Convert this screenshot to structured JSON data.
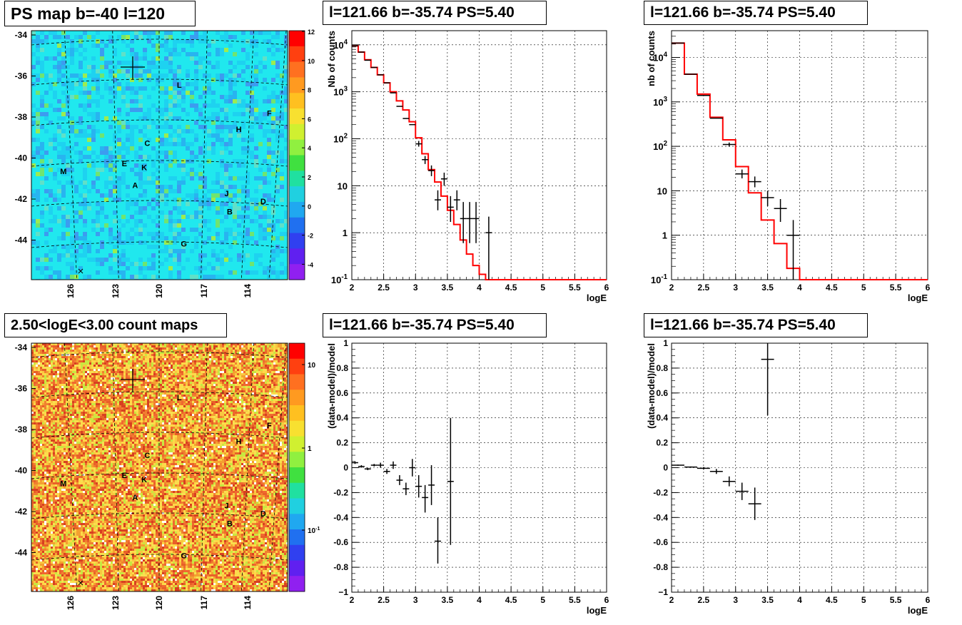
{
  "titles": {
    "ps_map": "PS map b=-40 l=120",
    "count_map": "2.50<logE<3.00 count maps",
    "panel_top_mid": "l=121.66 b=-35.74 PS=5.40",
    "panel_top_right": "l=121.66 b=-35.74 PS=5.40",
    "panel_bot_mid": "l=121.66 b=-35.74 PS=5.40",
    "panel_bot_right": "l=121.66 b=-35.74 PS=5.40"
  },
  "maps": {
    "ylabels": [
      "-34",
      "-36",
      "-38",
      "-40",
      "-42",
      "-44"
    ],
    "xlabels": [
      "126",
      "123",
      "120",
      "117",
      "114"
    ],
    "sources": [
      {
        "label": "L",
        "lon": 117.9,
        "lat": -36.1
      },
      {
        "label": "F",
        "lon": 112.0,
        "lat": -37.5
      },
      {
        "label": "H",
        "lon": 114.0,
        "lat": -38.3
      },
      {
        "label": "C",
        "lon": 120.0,
        "lat": -39.0
      },
      {
        "label": "E",
        "lon": 121.5,
        "lat": -40.0
      },
      {
        "label": "K",
        "lon": 120.2,
        "lat": -40.2
      },
      {
        "label": "M",
        "lon": 125.5,
        "lat": -40.4
      },
      {
        "label": "A",
        "lon": 120.8,
        "lat": -41.1
      },
      {
        "label": "J",
        "lon": 114.8,
        "lat": -41.5
      },
      {
        "label": "D",
        "lon": 112.4,
        "lat": -41.9
      },
      {
        "label": "B",
        "lon": 114.6,
        "lat": -42.4
      },
      {
        "label": "G",
        "lon": 117.6,
        "lat": -44.0
      }
    ],
    "ps_colorbar_labels": [
      "12",
      "10",
      "8",
      "6",
      "4",
      "2",
      "0",
      "-2",
      "-4"
    ],
    "count_colorbar_labels": [
      "10",
      "1",
      "10^-1"
    ],
    "colors": {
      "ps_background": "#20e8ee",
      "count_background": "#f0c040"
    }
  },
  "chart_data": [
    {
      "type": "line",
      "name": "spectrum-counts-mid",
      "title": "l=121.66 b=-35.74 PS=5.40",
      "xlabel": "logE",
      "ylabel": "Nb of counts",
      "yscale": "log",
      "xlim": [
        2,
        6
      ],
      "ylim": [
        0.1,
        20000
      ],
      "xticks": [
        "2",
        "2.5",
        "3",
        "3.5",
        "4",
        "4.5",
        "5",
        "5.5",
        "6"
      ],
      "yticks": [
        "10^-1",
        "1",
        "10",
        "10^2",
        "10^3",
        "10^4"
      ],
      "model_bins": [
        [
          2.0,
          2.1,
          9500
        ],
        [
          2.1,
          2.2,
          7000
        ],
        [
          2.2,
          2.3,
          4800
        ],
        [
          2.3,
          2.4,
          3300
        ],
        [
          2.4,
          2.5,
          2300
        ],
        [
          2.5,
          2.6,
          1550
        ],
        [
          2.6,
          2.7,
          1000
        ],
        [
          2.7,
          2.8,
          640
        ],
        [
          2.8,
          2.9,
          410
        ],
        [
          2.9,
          3.0,
          230
        ],
        [
          3.0,
          3.1,
          105
        ],
        [
          3.1,
          3.2,
          48
        ],
        [
          3.2,
          3.3,
          22
        ],
        [
          3.3,
          3.4,
          12
        ],
        [
          3.4,
          3.5,
          6
        ],
        [
          3.5,
          3.6,
          3
        ],
        [
          3.6,
          3.7,
          1.5
        ],
        [
          3.7,
          3.8,
          0.7
        ],
        [
          3.8,
          3.9,
          0.35
        ],
        [
          3.9,
          4.0,
          0.2
        ],
        [
          4.0,
          4.1,
          0.13
        ],
        [
          4.1,
          4.2,
          0.1
        ],
        [
          4.2,
          6.0,
          0.1
        ]
      ],
      "data_points": [
        [
          2.05,
          9500,
          0,
          0
        ],
        [
          2.15,
          7000,
          0,
          0
        ],
        [
          2.25,
          4700,
          0,
          0
        ],
        [
          2.35,
          3300,
          0,
          0
        ],
        [
          2.45,
          2300,
          0,
          0
        ],
        [
          2.55,
          1550,
          0,
          0
        ],
        [
          2.65,
          950,
          0,
          0
        ],
        [
          2.75,
          490,
          0,
          0
        ],
        [
          2.85,
          270,
          0,
          0
        ],
        [
          2.95,
          200,
          0,
          0
        ],
        [
          3.05,
          78,
          68,
          90
        ],
        [
          3.15,
          36,
          29,
          43
        ],
        [
          3.25,
          21,
          16,
          27
        ],
        [
          3.35,
          5,
          3,
          8
        ],
        [
          3.45,
          14,
          10,
          19
        ],
        [
          3.55,
          3.5,
          1.7,
          6
        ],
        [
          3.65,
          5,
          3,
          8
        ],
        [
          3.75,
          2,
          0.6,
          4.5
        ],
        [
          3.85,
          2,
          0.6,
          4.5
        ],
        [
          3.95,
          2,
          0.6,
          4.5
        ],
        [
          4.15,
          1,
          0.1,
          2.2
        ]
      ]
    },
    {
      "type": "line",
      "name": "spectrum-counts-right",
      "title": "l=121.66 b=-35.74 PS=5.40",
      "xlabel": "logE",
      "ylabel": "nb of counts",
      "yscale": "log",
      "xlim": [
        2,
        6
      ],
      "ylim": [
        0.1,
        40000
      ],
      "xticks": [
        "2",
        "2.5",
        "3",
        "3.5",
        "4",
        "4.5",
        "5",
        "5.5",
        "6"
      ],
      "yticks": [
        "10^-1",
        "1",
        "10",
        "10^2",
        "10^3",
        "10^4"
      ],
      "model_bins": [
        [
          2.0,
          2.2,
          21000
        ],
        [
          2.2,
          2.4,
          4200
        ],
        [
          2.4,
          2.6,
          1500
        ],
        [
          2.6,
          2.8,
          450
        ],
        [
          2.8,
          3.0,
          140
        ],
        [
          3.0,
          3.2,
          35
        ],
        [
          3.2,
          3.4,
          9
        ],
        [
          3.4,
          3.6,
          2.2
        ],
        [
          3.6,
          3.8,
          0.65
        ],
        [
          3.8,
          4.0,
          0.18
        ],
        [
          4.0,
          6.0,
          0.1
        ]
      ],
      "data_points": [
        [
          2.1,
          21000,
          0,
          0
        ],
        [
          2.3,
          4200,
          0,
          0
        ],
        [
          2.5,
          1400,
          0,
          0
        ],
        [
          2.7,
          430,
          0,
          0
        ],
        [
          2.9,
          110,
          98,
          122
        ],
        [
          3.1,
          24,
          19,
          30
        ],
        [
          3.3,
          16,
          12,
          21
        ],
        [
          3.5,
          7,
          4.5,
          10
        ],
        [
          3.7,
          4,
          2,
          6.5
        ],
        [
          3.9,
          1,
          0.1,
          2.2
        ]
      ]
    },
    {
      "type": "scatter",
      "name": "residual-mid",
      "title": "l=121.66 b=-35.74 PS=5.40",
      "xlabel": "logE",
      "ylabel": "(data-model)/model",
      "xlim": [
        2,
        6
      ],
      "ylim": [
        -1,
        1
      ],
      "xticks": [
        "2",
        "2.5",
        "3",
        "3.5",
        "4",
        "4.5",
        "5",
        "5.5",
        "6"
      ],
      "yticks": [
        "−1",
        "-0.8",
        "-0.6",
        "-0.4",
        "-0.2",
        "0",
        "0.2",
        "0.4",
        "0.6",
        "0.8",
        "1"
      ],
      "points": [
        [
          2.05,
          0.04,
          0.03,
          0.05
        ],
        [
          2.15,
          0.01,
          0.0,
          0.02
        ],
        [
          2.25,
          -0.01,
          -0.02,
          0.0
        ],
        [
          2.35,
          0.02,
          0.01,
          0.03
        ],
        [
          2.45,
          0.02,
          0.0,
          0.04
        ],
        [
          2.55,
          -0.03,
          -0.05,
          -0.01
        ],
        [
          2.65,
          0.02,
          -0.01,
          0.05
        ],
        [
          2.75,
          -0.1,
          -0.14,
          -0.06
        ],
        [
          2.85,
          -0.17,
          -0.22,
          -0.12
        ],
        [
          2.95,
          0.0,
          -0.07,
          0.07
        ],
        [
          3.05,
          -0.15,
          -0.24,
          -0.06
        ],
        [
          3.15,
          -0.24,
          -0.36,
          -0.14
        ],
        [
          3.25,
          -0.14,
          -0.3,
          0.02
        ],
        [
          3.35,
          -0.59,
          -0.77,
          -0.4
        ],
        [
          3.55,
          -0.11,
          -0.62,
          0.4
        ]
      ]
    },
    {
      "type": "scatter",
      "name": "residual-right",
      "title": "l=121.66 b=-35.74 PS=5.40",
      "xlabel": "logE",
      "ylabel": "(data-model)/model",
      "xlim": [
        2,
        6
      ],
      "ylim": [
        -1,
        1
      ],
      "xticks": [
        "2",
        "2.5",
        "3",
        "3.5",
        "4",
        "4.5",
        "5",
        "5.5",
        "6"
      ],
      "yticks": [
        "−1",
        "-0.8",
        "-0.6",
        "-0.4",
        "-0.2",
        "0",
        "0.2",
        "0.4",
        "0.6",
        "0.8",
        "1"
      ],
      "points": [
        [
          2.1,
          0.02,
          0.015,
          0.025
        ],
        [
          2.3,
          0.005,
          0.0,
          0.01
        ],
        [
          2.5,
          -0.005,
          -0.015,
          0.005
        ],
        [
          2.7,
          -0.03,
          -0.05,
          -0.01
        ],
        [
          2.9,
          -0.11,
          -0.15,
          -0.07
        ],
        [
          3.1,
          -0.19,
          -0.26,
          -0.12
        ],
        [
          3.3,
          -0.29,
          -0.42,
          -0.16
        ],
        [
          3.5,
          0.87,
          0.42,
          1.0
        ]
      ]
    }
  ]
}
